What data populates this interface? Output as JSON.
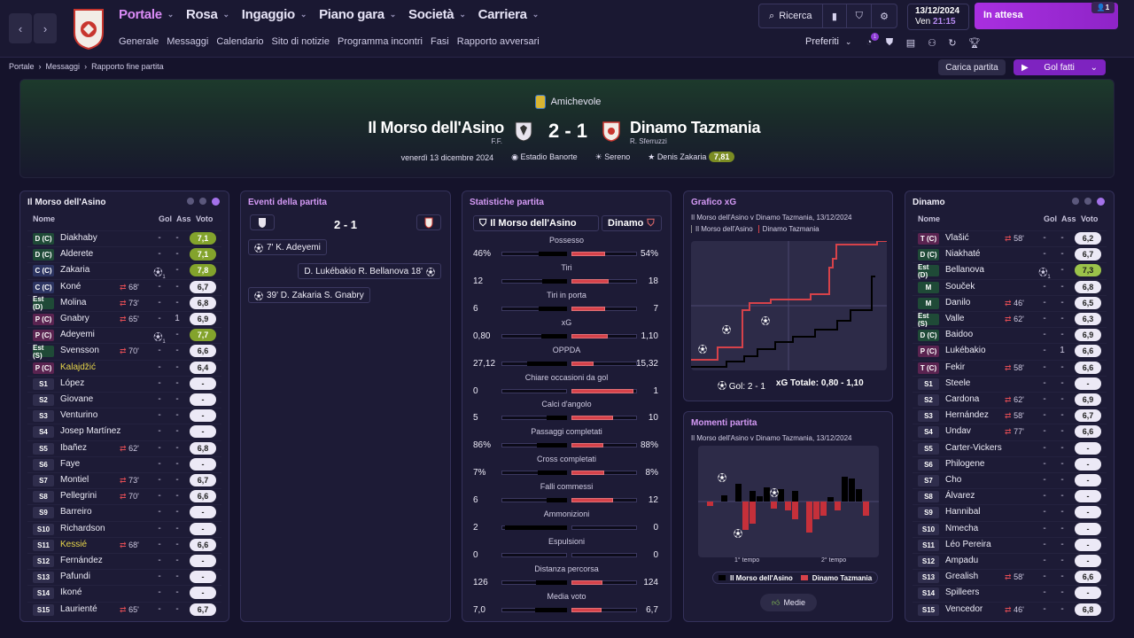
{
  "nav": {
    "main": [
      "Portale",
      "Rosa",
      "Ingaggio",
      "Piano gara",
      "Società",
      "Carriera"
    ],
    "sub": [
      "Generale",
      "Messaggi",
      "Calendario",
      "Sito di notizie",
      "Programma incontri",
      "Fasi",
      "Rapporto avversari"
    ],
    "search": "Ricerca",
    "date": "13/12/2024",
    "day": "Ven",
    "time": "21:15",
    "waiting": "In attesa",
    "waiting_badge": "1",
    "prefs": "Preferiti",
    "notif_badge": "1"
  },
  "crumbs": [
    "Portale",
    "Messaggi",
    "Rapporto fine partita"
  ],
  "actions": {
    "load": "Carica partita",
    "goals": "Gol fatti"
  },
  "header": {
    "competition": "Amichevole",
    "home": "Il Morso dell'Asino",
    "home_coach": "F.F.",
    "score": "2 - 1",
    "away": "Dinamo Tazmania",
    "away_coach": "R. Sferruzzi",
    "date": "venerdì 13 dicembre 2024",
    "stadium": "Estadio Banorte",
    "weather": "Sereno",
    "motm": "Denis Zakaria",
    "motm_rating": "7,81"
  },
  "home_panel": {
    "title": "Il Morso dell'Asino",
    "cols": {
      "name": "Nome",
      "goals": "Gol",
      "assists": "Ass",
      "rating": "Voto"
    },
    "players": [
      {
        "pos": "D (C)",
        "name": "Diakhaby",
        "sub": "",
        "g": "-",
        "a": "-",
        "v": "7,1",
        "tone": "green"
      },
      {
        "pos": "D (C)",
        "name": "Alderete",
        "sub": "",
        "g": "-",
        "a": "-",
        "v": "7,1",
        "tone": "green"
      },
      {
        "pos": "C (C)",
        "name": "Zakaria",
        "sub": "",
        "g": "ball",
        "a": "-",
        "v": "7,8",
        "tone": "green"
      },
      {
        "pos": "C (C)",
        "name": "Koné",
        "sub": "68'",
        "g": "-",
        "a": "-",
        "v": "6,7",
        "tone": ""
      },
      {
        "pos": "Est (D)",
        "name": "Molina",
        "sub": "73'",
        "g": "-",
        "a": "-",
        "v": "6,8",
        "tone": ""
      },
      {
        "pos": "P (C)",
        "name": "Gnabry",
        "sub": "65'",
        "g": "-",
        "a": "1",
        "v": "6,9",
        "tone": ""
      },
      {
        "pos": "P (C)",
        "name": "Adeyemi",
        "sub": "",
        "g": "ball",
        "a": "-",
        "v": "7,7",
        "tone": "green"
      },
      {
        "pos": "Est (S)",
        "name": "Svensson",
        "sub": "70'",
        "g": "-",
        "a": "-",
        "v": "6,6",
        "tone": ""
      },
      {
        "pos": "P (C)",
        "name": "Kalajdžić",
        "sub": "",
        "g": "-",
        "a": "-",
        "v": "6,4",
        "tone": "",
        "yellow": true
      },
      {
        "pos": "S1",
        "name": "López",
        "sub": "",
        "g": "-",
        "a": "-",
        "v": "-",
        "tone": ""
      },
      {
        "pos": "S2",
        "name": "Giovane",
        "sub": "",
        "g": "-",
        "a": "-",
        "v": "-",
        "tone": ""
      },
      {
        "pos": "S3",
        "name": "Venturino",
        "sub": "",
        "g": "-",
        "a": "-",
        "v": "-",
        "tone": ""
      },
      {
        "pos": "S4",
        "name": "Josep Martínez",
        "sub": "",
        "g": "-",
        "a": "-",
        "v": "-",
        "tone": ""
      },
      {
        "pos": "S5",
        "name": "Ibañez",
        "sub": "62'",
        "g": "-",
        "a": "-",
        "v": "6,8",
        "tone": ""
      },
      {
        "pos": "S6",
        "name": "Faye",
        "sub": "",
        "g": "-",
        "a": "-",
        "v": "-",
        "tone": ""
      },
      {
        "pos": "S7",
        "name": "Montiel",
        "sub": "73'",
        "g": "-",
        "a": "-",
        "v": "6,7",
        "tone": ""
      },
      {
        "pos": "S8",
        "name": "Pellegrini",
        "sub": "70'",
        "g": "-",
        "a": "-",
        "v": "6,6",
        "tone": ""
      },
      {
        "pos": "S9",
        "name": "Barreiro",
        "sub": "",
        "g": "-",
        "a": "-",
        "v": "-",
        "tone": ""
      },
      {
        "pos": "S10",
        "name": "Richardson",
        "sub": "",
        "g": "-",
        "a": "-",
        "v": "-",
        "tone": ""
      },
      {
        "pos": "S11",
        "name": "Kessié",
        "sub": "68'",
        "g": "-",
        "a": "-",
        "v": "6,6",
        "tone": "",
        "yellow": true
      },
      {
        "pos": "S12",
        "name": "Fernández",
        "sub": "",
        "g": "-",
        "a": "-",
        "v": "-",
        "tone": ""
      },
      {
        "pos": "S13",
        "name": "Pafundi",
        "sub": "",
        "g": "-",
        "a": "-",
        "v": "-",
        "tone": ""
      },
      {
        "pos": "S14",
        "name": "Ikoné",
        "sub": "",
        "g": "-",
        "a": "-",
        "v": "-",
        "tone": ""
      },
      {
        "pos": "S15",
        "name": "Laurienté",
        "sub": "65'",
        "g": "-",
        "a": "-",
        "v": "6,7",
        "tone": ""
      }
    ]
  },
  "events": {
    "title": "Eventi della partita",
    "score": "2 - 1",
    "items": [
      {
        "side": "home",
        "text": "7' K. Adeyemi"
      },
      {
        "side": "away",
        "text": "D. Lukébakio  R. Bellanova 18'"
      },
      {
        "side": "home",
        "text": "39' D. Zakaria  S. Gnabry"
      }
    ]
  },
  "stats": {
    "title": "Statistiche partita",
    "home": "Il Morso dell'Asino",
    "away": "Dinamo",
    "rows": [
      {
        "label": "Possesso",
        "h": "46%",
        "a": "54%",
        "hf": 0.46,
        "af": 0.54
      },
      {
        "label": "Tiri",
        "h": "12",
        "a": "18",
        "hf": 0.4,
        "af": 0.6
      },
      {
        "label": "Tiri in porta",
        "h": "6",
        "a": "7",
        "hf": 0.46,
        "af": 0.54
      },
      {
        "label": "xG",
        "h": "0,80",
        "a": "1,10",
        "hf": 0.42,
        "af": 0.58
      },
      {
        "label": "OPPDA",
        "h": "27,12",
        "a": "15,32",
        "hf": 0.64,
        "af": 0.36
      },
      {
        "label": "Chiare occasioni da gol",
        "h": "0",
        "a": "1",
        "hf": 0.0,
        "af": 1.0
      },
      {
        "label": "Calci d'angolo",
        "h": "5",
        "a": "10",
        "hf": 0.33,
        "af": 0.67
      },
      {
        "label": "Passaggi completati",
        "h": "86%",
        "a": "88%",
        "hf": 0.49,
        "af": 0.51
      },
      {
        "label": "Cross completati",
        "h": "7%",
        "a": "8%",
        "hf": 0.47,
        "af": 0.53
      },
      {
        "label": "Falli commessi",
        "h": "6",
        "a": "12",
        "hf": 0.33,
        "af": 0.67
      },
      {
        "label": "Ammonizioni",
        "h": "2",
        "a": "0",
        "hf": 1.0,
        "af": 0.0
      },
      {
        "label": "Espulsioni",
        "h": "0",
        "a": "0",
        "hf": 0.0,
        "af": 0.0
      },
      {
        "label": "Distanza percorsa",
        "h": "126",
        "a": "124",
        "hf": 0.5,
        "af": 0.5
      },
      {
        "label": "Media voto",
        "h": "7,0",
        "a": "6,7",
        "hf": 0.51,
        "af": 0.49
      }
    ]
  },
  "xg": {
    "title": "Grafico xG",
    "subtitle": "Il Morso dell'Asino v Dinamo Tazmania, 13/12/2024",
    "legend": [
      "Il Morso dell'Asino",
      "Dinamo Tazmania"
    ],
    "goals_label": "Gol: 2 - 1",
    "total_label": "xG Totale: 0,80 - 1,10",
    "colors": {
      "home": "#000000",
      "away": "#d6424a"
    }
  },
  "moments": {
    "title": "Momenti partita",
    "subtitle": "Il Morso dell'Asino v Dinamo Tazmania, 13/12/2024",
    "half1": "1° tempo",
    "half2": "2° tempo",
    "legend": [
      "Il Morso dell'Asino",
      "Dinamo Tazmania"
    ],
    "button": "Medie"
  },
  "away_panel": {
    "title": "Dinamo",
    "cols": {
      "name": "Nome",
      "goals": "Gol",
      "assists": "Ass",
      "rating": "Voto"
    },
    "players": [
      {
        "pos": "T (C)",
        "name": "Vlašić",
        "sub": "58'",
        "g": "-",
        "a": "-",
        "v": "6,2",
        "tone": ""
      },
      {
        "pos": "D (C)",
        "name": "Niakhaté",
        "sub": "",
        "g": "-",
        "a": "-",
        "v": "6,7",
        "tone": ""
      },
      {
        "pos": "Est (D)",
        "name": "Bellanova",
        "sub": "",
        "g": "ball",
        "a": "-",
        "v": "7,3",
        "tone": "lime"
      },
      {
        "pos": "M",
        "name": "Souček",
        "sub": "",
        "g": "-",
        "a": "-",
        "v": "6,8",
        "tone": ""
      },
      {
        "pos": "M",
        "name": "Danilo",
        "sub": "46'",
        "g": "-",
        "a": "-",
        "v": "6,5",
        "tone": ""
      },
      {
        "pos": "Est (S)",
        "name": "Valle",
        "sub": "62'",
        "g": "-",
        "a": "-",
        "v": "6,3",
        "tone": ""
      },
      {
        "pos": "D (C)",
        "name": "Baidoo",
        "sub": "",
        "g": "-",
        "a": "-",
        "v": "6,9",
        "tone": ""
      },
      {
        "pos": "P (C)",
        "name": "Lukébakio",
        "sub": "",
        "g": "-",
        "a": "1",
        "v": "6,6",
        "tone": ""
      },
      {
        "pos": "T (C)",
        "name": "Fekir",
        "sub": "58'",
        "g": "-",
        "a": "-",
        "v": "6,6",
        "tone": ""
      },
      {
        "pos": "S1",
        "name": "Steele",
        "sub": "",
        "g": "-",
        "a": "-",
        "v": "-",
        "tone": ""
      },
      {
        "pos": "S2",
        "name": "Cardona",
        "sub": "62'",
        "g": "-",
        "a": "-",
        "v": "6,9",
        "tone": ""
      },
      {
        "pos": "S3",
        "name": "Hernández",
        "sub": "58'",
        "g": "-",
        "a": "-",
        "v": "6,7",
        "tone": ""
      },
      {
        "pos": "S4",
        "name": "Undav",
        "sub": "77'",
        "g": "-",
        "a": "-",
        "v": "6,6",
        "tone": ""
      },
      {
        "pos": "S5",
        "name": "Carter-Vickers",
        "sub": "",
        "g": "-",
        "a": "-",
        "v": "-",
        "tone": ""
      },
      {
        "pos": "S6",
        "name": "Philogene",
        "sub": "",
        "g": "-",
        "a": "-",
        "v": "-",
        "tone": ""
      },
      {
        "pos": "S7",
        "name": "Cho",
        "sub": "",
        "g": "-",
        "a": "-",
        "v": "-",
        "tone": ""
      },
      {
        "pos": "S8",
        "name": "Álvarez",
        "sub": "",
        "g": "-",
        "a": "-",
        "v": "-",
        "tone": ""
      },
      {
        "pos": "S9",
        "name": "Hannibal",
        "sub": "",
        "g": "-",
        "a": "-",
        "v": "-",
        "tone": ""
      },
      {
        "pos": "S10",
        "name": "Nmecha",
        "sub": "",
        "g": "-",
        "a": "-",
        "v": "-",
        "tone": ""
      },
      {
        "pos": "S11",
        "name": "Léo Pereira",
        "sub": "",
        "g": "-",
        "a": "-",
        "v": "-",
        "tone": ""
      },
      {
        "pos": "S12",
        "name": "Ampadu",
        "sub": "",
        "g": "-",
        "a": "-",
        "v": "-",
        "tone": ""
      },
      {
        "pos": "S13",
        "name": "Grealish",
        "sub": "58'",
        "g": "-",
        "a": "-",
        "v": "6,6",
        "tone": ""
      },
      {
        "pos": "S14",
        "name": "Spilleers",
        "sub": "",
        "g": "-",
        "a": "-",
        "v": "-",
        "tone": ""
      },
      {
        "pos": "S15",
        "name": "Vencedor",
        "sub": "46'",
        "g": "-",
        "a": "-",
        "v": "6,8",
        "tone": ""
      }
    ]
  }
}
